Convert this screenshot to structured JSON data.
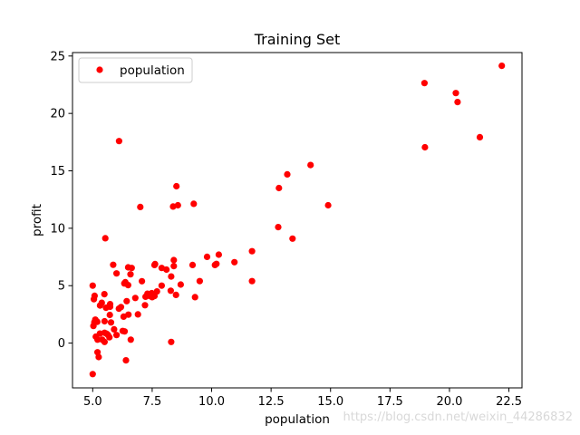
{
  "chart_data": {
    "type": "scatter",
    "title": "Training Set",
    "xlabel": "population",
    "ylabel": "profit",
    "xlim": [
      4.15,
      23.05
    ],
    "ylim": [
      -3.9,
      25.3
    ],
    "xticks": [
      5.0,
      7.5,
      10.0,
      12.5,
      15.0,
      17.5,
      20.0,
      22.5
    ],
    "xtick_labels": [
      "5.0",
      "7.5",
      "10.0",
      "12.5",
      "15.0",
      "17.5",
      "20.0",
      "22.5"
    ],
    "yticks": [
      0,
      5,
      10,
      15,
      20,
      25
    ],
    "ytick_labels": [
      "0",
      "5",
      "10",
      "15",
      "20",
      "25"
    ],
    "grid": false,
    "legend_position": "top-left",
    "series": [
      {
        "name": "population",
        "color": "#ff0000",
        "points": [
          [
            6.11,
            17.59
          ],
          [
            5.53,
            9.13
          ],
          [
            8.52,
            13.66
          ],
          [
            7.0,
            11.85
          ],
          [
            5.86,
            6.82
          ],
          [
            8.38,
            11.89
          ],
          [
            7.48,
            4.35
          ],
          [
            8.58,
            12.0
          ],
          [
            6.49,
            6.6
          ],
          [
            5.05,
            3.82
          ],
          [
            5.71,
            3.25
          ],
          [
            14.16,
            15.51
          ],
          [
            5.73,
            3.16
          ],
          [
            8.41,
            7.23
          ],
          [
            5.64,
            0.72
          ],
          [
            5.38,
            3.51
          ],
          [
            6.37,
            5.3
          ],
          [
            5.13,
            0.56
          ],
          [
            6.43,
            3.65
          ],
          [
            7.07,
            5.39
          ],
          [
            6.19,
            3.14
          ],
          [
            20.27,
            21.77
          ],
          [
            5.49,
            4.26
          ],
          [
            6.33,
            5.19
          ],
          [
            5.56,
            3.08
          ],
          [
            18.95,
            22.64
          ],
          [
            12.83,
            13.5
          ],
          [
            10.96,
            7.05
          ],
          [
            13.18,
            14.69
          ],
          [
            22.2,
            24.15
          ],
          [
            5.25,
            -1.22
          ],
          [
            6.59,
            5.99
          ],
          [
            9.25,
            12.13
          ],
          [
            5.19,
            1.85
          ],
          [
            7.9,
            6.54
          ],
          [
            8.28,
            4.56
          ],
          [
            5.08,
            4.12
          ],
          [
            5.73,
            3.39
          ],
          [
            5.31,
            3.27
          ],
          [
            6.49,
            5.05
          ],
          [
            6.26,
            1.06
          ],
          [
            6.79,
            3.93
          ],
          [
            7.62,
            6.88
          ],
          [
            9.81,
            7.51
          ],
          [
            5.3,
            0.83
          ],
          [
            8.41,
            6.71
          ],
          [
            5.77,
            1.8
          ],
          [
            5.03,
            1.49
          ],
          [
            6.34,
            1.02
          ],
          [
            6.64,
            6.54
          ],
          [
            5.07,
            1.81
          ],
          [
            5.58,
            0.82
          ],
          [
            6.0,
            6.07
          ],
          [
            5.11,
            2.04
          ],
          [
            7.22,
            4.04
          ],
          [
            6.5,
            2.48
          ],
          [
            10.14,
            6.8
          ],
          [
            5.72,
            2.45
          ],
          [
            18.97,
            17.05
          ],
          [
            20.34,
            20.99
          ],
          [
            21.28,
            17.93
          ],
          [
            5.0,
            5.0
          ],
          [
            5.5,
            1.9
          ],
          [
            6.0,
            0.7
          ],
          [
            5.2,
            0.3
          ],
          [
            6.4,
            -1.5
          ],
          [
            5.0,
            -2.7
          ],
          [
            5.7,
            0.5
          ],
          [
            5.2,
            -0.8
          ],
          [
            5.9,
            1.2
          ],
          [
            6.3,
            2.3
          ],
          [
            6.9,
            2.5
          ],
          [
            7.3,
            4.3
          ],
          [
            7.5,
            4.0
          ],
          [
            7.9,
            5.0
          ],
          [
            8.1,
            6.4
          ],
          [
            8.3,
            5.8
          ],
          [
            8.5,
            4.2
          ],
          [
            8.7,
            5.1
          ],
          [
            9.2,
            6.8
          ],
          [
            9.3,
            4.0
          ],
          [
            9.5,
            5.4
          ],
          [
            10.2,
            6.9
          ],
          [
            10.3,
            7.7
          ],
          [
            11.7,
            8.0
          ],
          [
            11.7,
            5.4
          ],
          [
            12.8,
            10.1
          ],
          [
            13.4,
            9.1
          ],
          [
            14.9,
            12.0
          ],
          [
            8.3,
            0.1
          ],
          [
            6.6,
            0.3
          ],
          [
            7.6,
            6.8
          ],
          [
            7.2,
            3.3
          ],
          [
            5.4,
            0.3
          ],
          [
            5.5,
            0.1
          ],
          [
            6.1,
            3.0
          ],
          [
            5.5,
            0.9
          ],
          [
            7.4,
            4.1
          ],
          [
            7.6,
            4.1
          ],
          [
            7.7,
            4.5
          ]
        ]
      }
    ]
  },
  "watermark": "https://blog.csdn.net/weixin_44286832"
}
